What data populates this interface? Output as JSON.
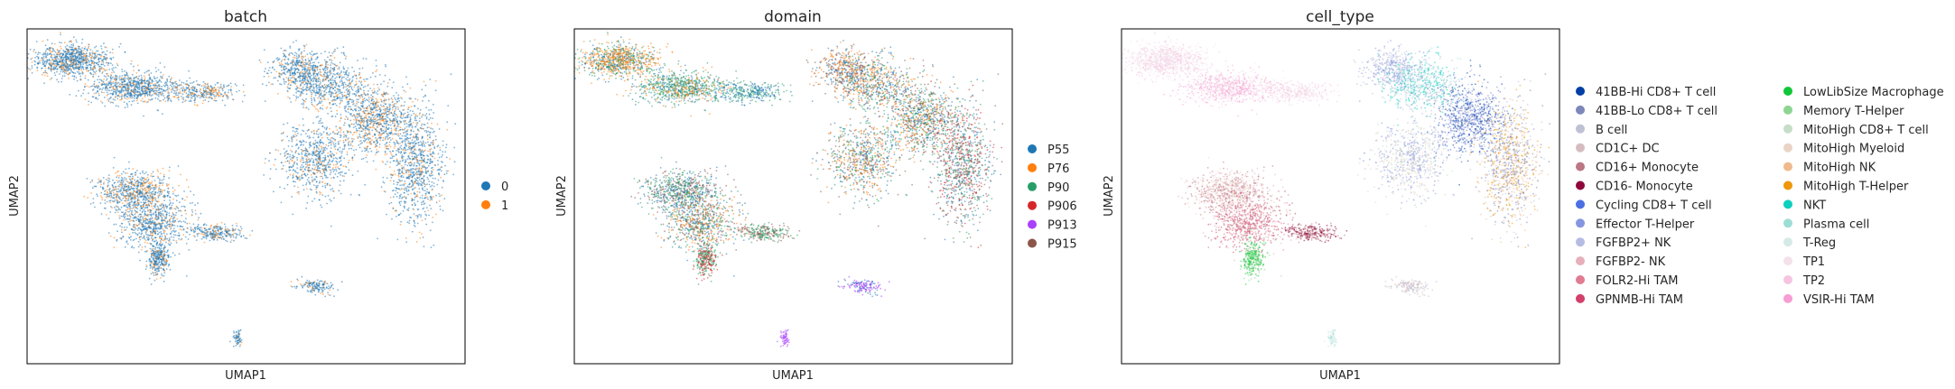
{
  "chart_data": [
    {
      "type": "scatter",
      "title": "batch",
      "xlabel": "UMAP1",
      "ylabel": "UMAP2",
      "grid": false,
      "legend_position": "right",
      "legend_columns": 1,
      "series": [
        {
          "name": "0",
          "color": "#1f77b4"
        },
        {
          "name": "1",
          "color": "#ff7f0e"
        }
      ]
    },
    {
      "type": "scatter",
      "title": "domain",
      "xlabel": "UMAP1",
      "ylabel": "UMAP2",
      "grid": false,
      "legend_position": "right",
      "legend_columns": 1,
      "series": [
        {
          "name": "P55",
          "color": "#1f77b4"
        },
        {
          "name": "P76",
          "color": "#ff7f0e"
        },
        {
          "name": "P90",
          "color": "#279e68"
        },
        {
          "name": "P906",
          "color": "#d62728"
        },
        {
          "name": "P913",
          "color": "#aa40fc"
        },
        {
          "name": "P915",
          "color": "#8c564b"
        }
      ]
    },
    {
      "type": "scatter",
      "title": "cell_type",
      "xlabel": "UMAP1",
      "ylabel": "UMAP2",
      "grid": false,
      "legend_position": "right",
      "legend_columns": 2,
      "series": [
        {
          "name": "41BB-Hi CD8+ T cell",
          "color": "#023fa5"
        },
        {
          "name": "41BB-Lo CD8+ T cell",
          "color": "#7d87b9"
        },
        {
          "name": "B cell",
          "color": "#bec1d4"
        },
        {
          "name": "CD1C+ DC",
          "color": "#d6bcc0"
        },
        {
          "name": "CD16+ Monocyte",
          "color": "#bb7784"
        },
        {
          "name": "CD16- Monocyte",
          "color": "#8e063b"
        },
        {
          "name": "Cycling CD8+ T cell",
          "color": "#4a6fe3"
        },
        {
          "name": "Effector T-Helper",
          "color": "#8595e1"
        },
        {
          "name": "FGFBP2+ NK",
          "color": "#b5bbe3"
        },
        {
          "name": "FGFBP2- NK",
          "color": "#e6afb9"
        },
        {
          "name": "FOLR2-Hi TAM",
          "color": "#e07b91"
        },
        {
          "name": "GPNMB-Hi TAM",
          "color": "#d33f6a"
        },
        {
          "name": "LowLibSize Macrophage",
          "color": "#11c638"
        },
        {
          "name": "Memory T-Helper",
          "color": "#8dd593"
        },
        {
          "name": "MitoHigh CD8+ T cell",
          "color": "#c6dec7"
        },
        {
          "name": "MitoHigh Myeloid",
          "color": "#ead3c6"
        },
        {
          "name": "MitoHigh NK",
          "color": "#f0b98d"
        },
        {
          "name": "MitoHigh T-Helper",
          "color": "#ef9708"
        },
        {
          "name": "NKT",
          "color": "#0fcfc0"
        },
        {
          "name": "Plasma cell",
          "color": "#9cded6"
        },
        {
          "name": "T-Reg",
          "color": "#d5eae7"
        },
        {
          "name": "TP1",
          "color": "#f3e1eb"
        },
        {
          "name": "TP2",
          "color": "#f6c4e1"
        },
        {
          "name": "VSIR-Hi TAM",
          "color": "#f79cd4"
        }
      ]
    }
  ]
}
